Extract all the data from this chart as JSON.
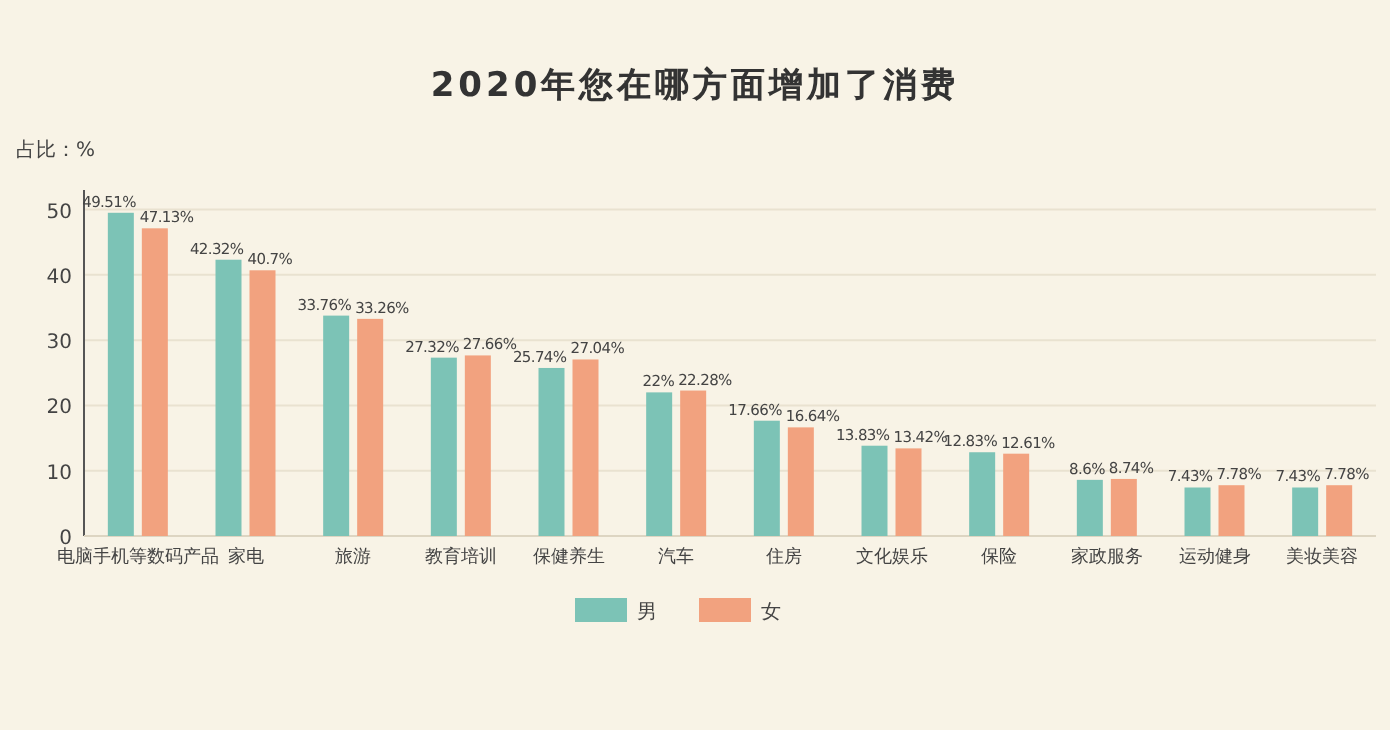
{
  "chart_data": {
    "type": "bar",
    "title": "2020年您在哪方面增加了消费",
    "ylabel": "占比：%",
    "categories": [
      "电脑手机等数码产品",
      "家电",
      "旅游",
      "教育培训",
      "保健养生",
      "汽车",
      "住房",
      "文化娱乐",
      "保险",
      "家政服务",
      "运动健身",
      "美妆美容"
    ],
    "series": [
      {
        "name": "男",
        "color": "#7cc3b6",
        "values": [
          49.51,
          42.32,
          33.76,
          27.32,
          25.74,
          22,
          17.66,
          13.83,
          12.83,
          8.6,
          7.43,
          7.43
        ],
        "value_labels": [
          "49.51%",
          "42.32%",
          "33.76%",
          "27.32%",
          "25.74%",
          "22%",
          "17.66%",
          "13.83%",
          "12.83%",
          "8.6%",
          "7.43%",
          "7.43%"
        ]
      },
      {
        "name": "女",
        "color": "#f2a27f",
        "values": [
          47.13,
          40.7,
          33.26,
          27.66,
          27.04,
          22.28,
          16.64,
          13.42,
          12.61,
          8.74,
          7.78,
          7.78
        ],
        "value_labels": [
          "47.13%",
          "40.7%",
          "33.26%",
          "27.66%",
          "27.04%",
          "22.28%",
          "16.64%",
          "13.42%",
          "12.61%",
          "8.74%",
          "7.78%",
          "7.78%"
        ]
      }
    ],
    "ylim": [
      0,
      53
    ],
    "yticks": [
      0,
      10,
      20,
      30,
      40,
      50
    ],
    "grid": "y",
    "legend": "bottom"
  }
}
